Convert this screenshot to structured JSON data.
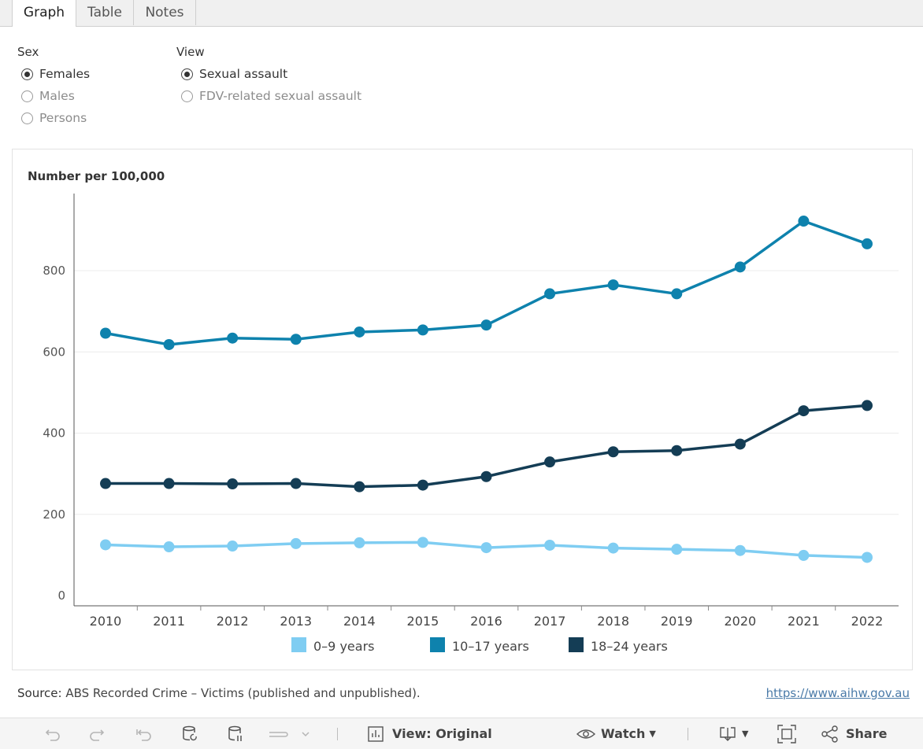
{
  "tabs": [
    "Graph",
    "Table",
    "Notes"
  ],
  "filters": {
    "sex": {
      "label": "Sex",
      "options": [
        "Females",
        "Males",
        "Persons"
      ],
      "selected": "Females"
    },
    "view": {
      "label": "View",
      "options": [
        "Sexual assault",
        "FDV-related sexual assault"
      ],
      "selected": "Sexual assault"
    }
  },
  "chart_data": {
    "type": "line",
    "ylabel": "Number per 100,000",
    "xlabel": "",
    "ylim": [
      0,
      1000
    ],
    "yticks": [
      0,
      200,
      400,
      600,
      800
    ],
    "grid": true,
    "legend_position": "bottom",
    "categories": [
      "2010",
      "2011",
      "2012",
      "2013",
      "2014",
      "2015",
      "2016",
      "2017",
      "2018",
      "2019",
      "2020",
      "2021",
      "2022"
    ],
    "series": [
      {
        "name": "0–9 years",
        "color": "#7fcdf2",
        "values": [
          125,
          120,
          122,
          128,
          130,
          131,
          118,
          124,
          117,
          114,
          111,
          99,
          94
        ]
      },
      {
        "name": "10–17 years",
        "color": "#0e82ad",
        "values": [
          646,
          618,
          634,
          631,
          649,
          654,
          666,
          743,
          765,
          743,
          809,
          922,
          866
        ]
      },
      {
        "name": "18–24 years",
        "color": "#143d55",
        "values": [
          276,
          276,
          275,
          276,
          268,
          272,
          293,
          329,
          354,
          357,
          373,
          455,
          468
        ]
      }
    ]
  },
  "source": {
    "lead": "Source:",
    "text": " ABS Recorded Crime – Victims (published and unpublished)."
  },
  "link": "https://www.aihw.gov.au",
  "toolbar": {
    "view_label": "View: Original",
    "watch_label": "Watch",
    "share_label": "Share"
  }
}
